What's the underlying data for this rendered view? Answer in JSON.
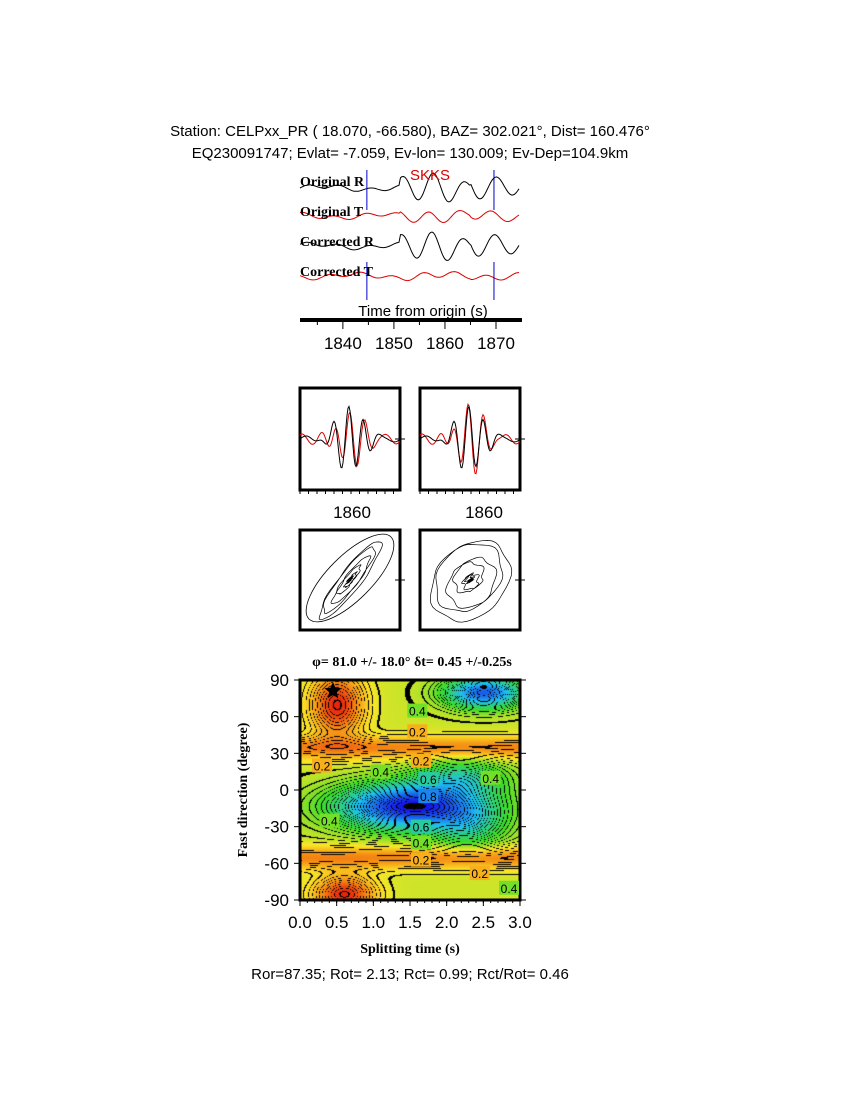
{
  "header": {
    "line1": "Station: CELPxx_PR (  18.070,  -66.580), BAZ=  302.021°, Dist=  160.476°",
    "line2": "EQ230091747; Evlat=  -7.059, Ev-lon= 130.009; Ev-Dep=104.9km"
  },
  "chart_data": [
    {
      "type": "line",
      "phase_label": "SKKS",
      "trace_labels": [
        "Original R",
        "Original T",
        "Corrected R",
        "Corrected T"
      ],
      "xlabel": "Time from origin (s)",
      "x_ticks": [
        "1840",
        "1850",
        "1860",
        "1870"
      ],
      "xlim": [
        1831.6,
        1874.7
      ],
      "window_markers": [
        1844.7,
        1869.6
      ],
      "colors": {
        "radial": "#000000",
        "transverse": "#dd0000",
        "marker": "#0000cc"
      }
    },
    {
      "type": "line",
      "panels": [
        "original",
        "corrected"
      ],
      "x_ticks": [
        "1860",
        "1860"
      ]
    },
    {
      "type": "line",
      "panels": [
        "particle-motion-original",
        "particle-motion-corrected"
      ]
    },
    {
      "type": "heatmap",
      "title": "φ= 81.0 +/- 18.0° δt= 0.45 +/-0.25s",
      "xlabel": "Splitting time (s)",
      "ylabel": "Fast direction (degree)",
      "x_ticks": [
        "0.0",
        "0.5",
        "1.0",
        "1.5",
        "2.0",
        "2.5",
        "3.0"
      ],
      "y_ticks": [
        "90",
        "60",
        "30",
        "0",
        "-30",
        "-60",
        "-90"
      ],
      "xlim": [
        0,
        3
      ],
      "ylim": [
        -90,
        90
      ],
      "best": {
        "dt": 0.45,
        "phi": 81.0
      },
      "contour_labels": [
        "0.2",
        "0.4",
        "0.6",
        "0.8"
      ]
    }
  ],
  "footer": "Ror=87.35; Rot= 2.13; Rct= 0.99; Rct/Rot= 0.46"
}
